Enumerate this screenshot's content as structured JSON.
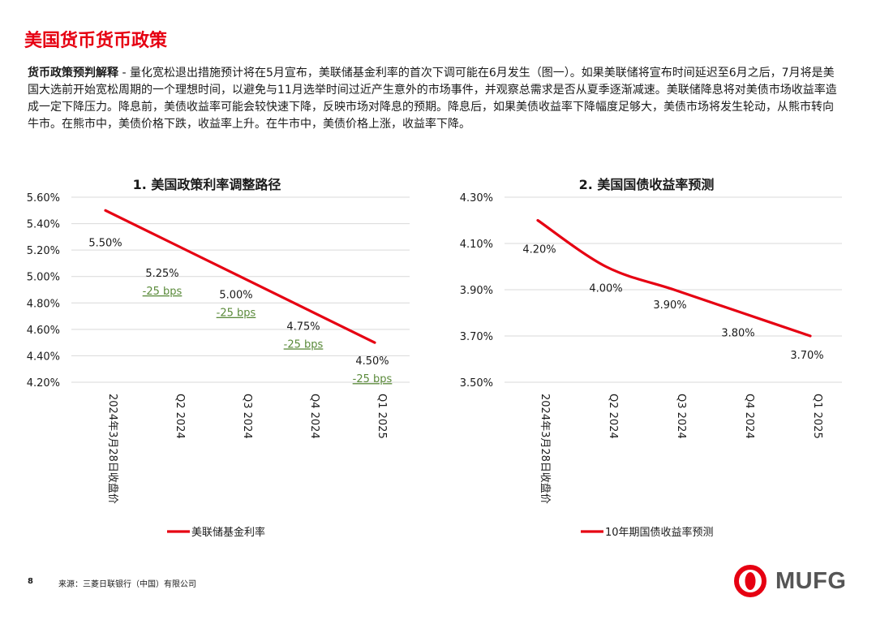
{
  "page": {
    "title": "美国货币货币政策",
    "intro_lead": "货币政策预判解释",
    "intro_body": " - 量化宽松退出措施预计将在5月宣布，美联储基金利率的首次下调可能在6月发生（图一）。如果美联储将宣布时间延迟至6月之后，7月将是美国大选前开始宽松周期的一个理想时间，以避免与11月选举时间过近产生意外的市场事件，并观察总需求是否从夏季逐渐减速。美联储降息将对美债市场收益率造成一定下降压力。降息前，美债收益率可能会较快速下降，反映市场对降息的预期。降息后，如果美债收益率下降幅度足够大，美债市场将发生轮动，从熊市转向牛市。在熊市中，美债价格下跌，收益率上升。在牛市中，美债价格上涨，收益率下降。",
    "page_number": "8",
    "source": "来源：三菱日联银行（中国）有限公司",
    "logo_text": "MUFG",
    "accent_color": "#e60012",
    "annotation_color": "#5a8a3a"
  },
  "chart_data": [
    {
      "type": "line",
      "title": "1. 美国政策利率调整路径",
      "categories": [
        "2024年3月28日收盘价",
        "Q2 2024",
        "Q3 2024",
        "Q4 2024",
        "Q1 2025"
      ],
      "series": [
        {
          "name": "美联储基金利率",
          "values": [
            5.5,
            5.25,
            5.0,
            4.75,
            4.5
          ],
          "color": "#e60012"
        }
      ],
      "data_labels": [
        "5.50%",
        "5.25%",
        "5.00%",
        "4.75%",
        "4.50%"
      ],
      "annotations": [
        "",
        "-25 bps",
        "-25 bps",
        "-25 bps",
        "-25 bps"
      ],
      "yticks": [
        "5.60%",
        "5.40%",
        "5.20%",
        "5.00%",
        "4.80%",
        "4.60%",
        "4.40%",
        "4.20%"
      ],
      "ylim": [
        4.2,
        5.6
      ],
      "grid": true,
      "legend_position": "bottom"
    },
    {
      "type": "line",
      "title": "2. 美国国债收益率预测",
      "categories": [
        "2024年3月28日收盘价",
        "Q2 2024",
        "Q3 2024",
        "Q4 2024",
        "Q1 2025"
      ],
      "series": [
        {
          "name": "10年期国债收益率预测",
          "values": [
            4.2,
            4.0,
            3.9,
            3.8,
            3.7
          ],
          "color": "#e60012"
        }
      ],
      "data_labels": [
        "4.20%",
        "4.00%",
        "3.90%",
        "3.80%",
        "3.70%"
      ],
      "annotations": [
        "",
        "",
        "",
        "",
        ""
      ],
      "yticks": [
        "4.30%",
        "4.10%",
        "3.90%",
        "3.70%",
        "3.50%"
      ],
      "ylim": [
        3.5,
        4.3
      ],
      "grid": true,
      "legend_position": "bottom"
    }
  ]
}
